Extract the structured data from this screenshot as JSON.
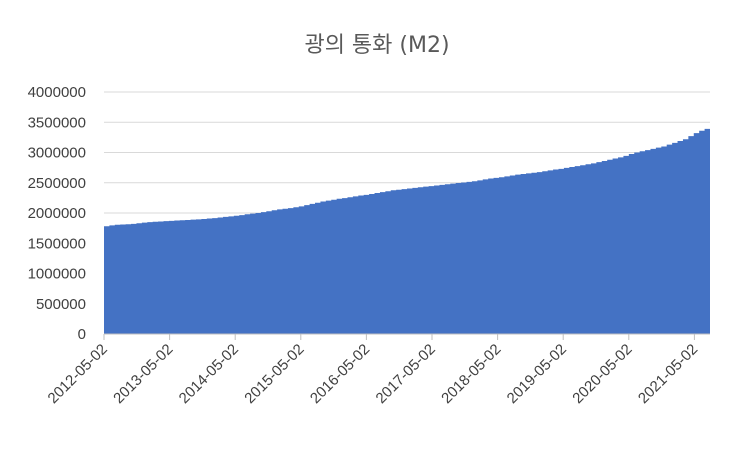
{
  "chart_data": {
    "type": "area",
    "title": "광의 통화 (M2)",
    "xlabel": "",
    "ylabel": "",
    "ylim": [
      0,
      4000000
    ],
    "yticks": [
      "0",
      "500000",
      "1000000",
      "1500000",
      "2000000",
      "2500000",
      "3000000",
      "3500000",
      "4000000"
    ],
    "xticks": [
      "2012-05-02",
      "2013-05-02",
      "2014-05-02",
      "2015-05-02",
      "2016-05-02",
      "2017-05-02",
      "2018-05-02",
      "2019-05-02",
      "2020-05-02",
      "2021-05-02"
    ],
    "grid": true,
    "legend": "none",
    "color": "#4472c4",
    "series": [
      {
        "x": [
          "2012-05",
          "2012-06",
          "2012-07",
          "2012-08",
          "2012-09",
          "2012-10",
          "2012-11",
          "2012-12",
          "2013-01",
          "2013-02",
          "2013-03",
          "2013-04",
          "2013-05",
          "2013-06",
          "2013-07",
          "2013-08",
          "2013-09",
          "2013-10",
          "2013-11",
          "2013-12",
          "2014-01",
          "2014-02",
          "2014-03",
          "2014-04",
          "2014-05",
          "2014-06",
          "2014-07",
          "2014-08",
          "2014-09",
          "2014-10",
          "2014-11",
          "2014-12",
          "2015-01",
          "2015-02",
          "2015-03",
          "2015-04",
          "2015-05",
          "2015-06",
          "2015-07",
          "2015-08",
          "2015-09",
          "2015-10",
          "2015-11",
          "2015-12",
          "2016-01",
          "2016-02",
          "2016-03",
          "2016-04",
          "2016-05",
          "2016-06",
          "2016-07",
          "2016-08",
          "2016-09",
          "2016-10",
          "2016-11",
          "2016-12",
          "2017-01",
          "2017-02",
          "2017-03",
          "2017-04",
          "2017-05",
          "2017-06",
          "2017-07",
          "2017-08",
          "2017-09",
          "2017-10",
          "2017-11",
          "2017-12",
          "2018-01",
          "2018-02",
          "2018-03",
          "2018-04",
          "2018-05",
          "2018-06",
          "2018-07",
          "2018-08",
          "2018-09",
          "2018-10",
          "2018-11",
          "2018-12",
          "2019-01",
          "2019-02",
          "2019-03",
          "2019-04",
          "2019-05",
          "2019-06",
          "2019-07",
          "2019-08",
          "2019-09",
          "2019-10",
          "2019-11",
          "2019-12",
          "2020-01",
          "2020-02",
          "2020-03",
          "2020-04",
          "2020-05",
          "2020-06",
          "2020-07",
          "2020-08",
          "2020-09",
          "2020-10",
          "2020-11",
          "2020-12",
          "2021-01",
          "2021-02",
          "2021-03",
          "2021-04",
          "2021-05",
          "2021-06",
          "2021-07",
          "2021-08"
        ],
        "values": [
          1780000,
          1795000,
          1805000,
          1810000,
          1815000,
          1820000,
          1830000,
          1840000,
          1850000,
          1855000,
          1860000,
          1865000,
          1870000,
          1875000,
          1880000,
          1885000,
          1890000,
          1895000,
          1900000,
          1910000,
          1915000,
          1925000,
          1935000,
          1945000,
          1955000,
          1965000,
          1980000,
          1990000,
          2000000,
          2015000,
          2030000,
          2045000,
          2060000,
          2070000,
          2080000,
          2095000,
          2110000,
          2130000,
          2150000,
          2170000,
          2190000,
          2205000,
          2220000,
          2235000,
          2245000,
          2260000,
          2275000,
          2290000,
          2300000,
          2315000,
          2330000,
          2345000,
          2360000,
          2375000,
          2385000,
          2395000,
          2405000,
          2415000,
          2425000,
          2435000,
          2445000,
          2455000,
          2465000,
          2475000,
          2485000,
          2495000,
          2505000,
          2515000,
          2525000,
          2540000,
          2555000,
          2570000,
          2580000,
          2590000,
          2605000,
          2620000,
          2635000,
          2645000,
          2655000,
          2665000,
          2675000,
          2690000,
          2705000,
          2720000,
          2730000,
          2745000,
          2760000,
          2775000,
          2790000,
          2805000,
          2820000,
          2840000,
          2860000,
          2880000,
          2900000,
          2920000,
          2945000,
          2975000,
          3000000,
          3020000,
          3040000,
          3060000,
          3080000,
          3100000,
          3130000,
          3160000,
          3190000,
          3220000,
          3270000,
          3320000,
          3360000,
          3390000
        ]
      }
    ]
  }
}
